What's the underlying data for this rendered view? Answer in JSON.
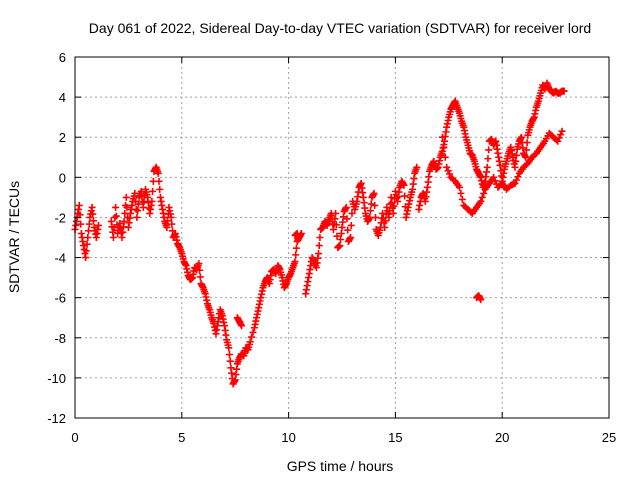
{
  "chart_data": {
    "type": "scatter",
    "title": "Day 061 of 2022, Sidereal Day-to-day VTEC variation (SDTVAR) for receiver lord",
    "xlabel": "GPS time / hours",
    "ylabel": "SDTVAR / TECUs",
    "xlim": [
      0,
      25
    ],
    "ylim": [
      -12,
      6
    ],
    "xticks": [
      0,
      5,
      10,
      15,
      20,
      25
    ],
    "yticks": [
      -12,
      -10,
      -8,
      -6,
      -4,
      -2,
      0,
      2,
      4,
      6
    ],
    "xtick_labels": [
      "0",
      "5",
      "10",
      "15",
      "20",
      "25"
    ],
    "ytick_labels": [
      "-12",
      "-10",
      "-8",
      "-6",
      "-4",
      "-2",
      "0",
      "2",
      "4",
      "6"
    ],
    "grid": true,
    "marker": "+",
    "color": "#ff0000",
    "series": [
      {
        "name": "SDTVAR",
        "x": [
          0.0,
          0.1,
          0.2,
          0.3,
          0.4,
          0.5,
          0.6,
          0.7,
          0.8,
          0.9,
          1.0,
          1.1,
          1.7,
          1.8,
          1.9,
          2.0,
          2.1,
          2.2,
          2.3,
          2.4,
          2.5,
          2.6,
          2.7,
          2.8,
          2.9,
          3.0,
          3.1,
          3.2,
          3.3,
          3.4,
          3.5,
          3.6,
          3.7,
          3.8,
          3.9,
          4.0,
          4.1,
          4.2,
          4.3,
          4.4,
          4.5,
          4.6,
          4.7,
          4.8,
          4.9,
          5.0,
          5.1,
          5.2,
          5.3,
          5.4,
          5.5,
          5.6,
          5.7,
          5.8,
          5.9,
          6.0,
          6.1,
          6.2,
          6.3,
          6.4,
          6.5,
          6.6,
          6.7,
          6.8,
          6.9,
          7.0,
          7.1,
          7.2,
          7.3,
          7.4,
          7.5,
          7.6,
          7.7,
          7.8,
          7.9,
          8.0,
          8.1,
          8.2,
          8.4,
          8.5,
          8.6,
          8.7,
          8.8,
          8.9,
          9.0,
          9.1,
          9.2,
          9.3,
          9.4,
          9.5,
          9.6,
          9.7,
          9.8,
          9.9,
          10.0,
          10.1,
          10.2,
          10.3,
          10.4,
          10.5,
          10.6,
          10.8,
          10.9,
          11.0,
          11.1,
          11.2,
          11.3,
          11.4,
          11.5,
          11.6,
          11.7,
          11.8,
          11.9,
          12.0,
          12.1,
          12.2,
          12.3,
          12.4,
          12.5,
          12.6,
          12.7,
          12.8,
          12.9,
          13.0,
          13.1,
          13.2,
          13.3,
          13.4,
          13.5,
          13.6,
          13.7,
          13.8,
          13.9,
          14.0,
          14.1,
          14.2,
          14.3,
          14.4,
          14.5,
          14.6,
          14.7,
          14.8,
          14.9,
          15.0,
          15.1,
          15.2,
          15.3,
          15.4,
          15.5,
          15.6,
          15.7,
          15.8,
          15.9,
          16.0,
          16.1,
          16.2,
          16.3,
          16.4,
          16.5,
          16.6,
          16.7,
          16.8,
          16.9,
          17.0,
          17.1,
          17.2,
          17.3,
          17.4,
          17.5,
          17.6,
          17.7,
          17.8,
          17.9,
          18.0,
          18.1,
          18.2,
          18.3,
          18.4,
          18.5,
          18.6,
          18.7,
          18.8,
          18.9,
          19.0,
          19.1,
          19.2,
          19.3,
          19.4,
          19.5,
          19.6,
          19.7,
          19.8,
          19.9,
          20.0,
          20.1,
          20.2,
          20.3,
          20.4,
          20.5,
          20.6,
          20.7,
          20.8,
          20.9,
          21.0,
          21.1,
          21.2,
          21.3,
          21.4,
          21.5,
          21.6,
          21.7,
          21.8,
          21.9,
          22.0,
          22.1,
          22.2,
          22.3,
          22.4,
          22.5,
          22.6,
          22.7,
          22.8,
          22.9,
          17.2,
          17.4,
          17.6,
          17.8,
          18.0,
          18.2,
          18.4,
          18.6,
          18.8,
          19.0,
          19.2,
          19.4,
          19.6,
          19.8,
          20.0,
          20.2,
          20.4,
          20.6,
          20.8,
          21.0,
          21.2,
          21.4,
          21.6,
          21.8,
          22.0,
          22.2,
          22.4,
          22.6,
          22.8,
          18.8,
          18.9,
          19.0,
          10.3,
          10.4,
          7.6,
          7.7,
          7.8
        ],
        "y": [
          -2.6,
          -2.0,
          -1.4,
          -2.8,
          -3.4,
          -4.0,
          -3.0,
          -2.0,
          -1.5,
          -2.5,
          -3.0,
          -2.4,
          -2.2,
          -3.0,
          -1.5,
          -2.8,
          -2.3,
          -3.0,
          -2.2,
          -1.0,
          -2.5,
          -1.8,
          -1.2,
          -0.8,
          -2.0,
          -1.0,
          -0.7,
          -1.5,
          -0.6,
          -1.0,
          -1.8,
          -1.2,
          0.3,
          0.5,
          0.2,
          -1.0,
          -1.6,
          -2.2,
          -2.5,
          -1.5,
          -2.0,
          -3.0,
          -2.8,
          -3.3,
          -3.5,
          -3.8,
          -4.2,
          -4.4,
          -4.9,
          -5.1,
          -5.0,
          -4.5,
          -4.6,
          -4.3,
          -5.3,
          -5.5,
          -5.8,
          -6.3,
          -6.6,
          -7.0,
          -7.3,
          -7.8,
          -7.2,
          -6.6,
          -6.9,
          -7.4,
          -8.1,
          -8.5,
          -9.5,
          -10.3,
          -10.1,
          -9.3,
          -9.0,
          -8.8,
          -8.9,
          -8.5,
          -8.6,
          -8.2,
          -7.5,
          -7.0,
          -6.5,
          -6.0,
          -5.5,
          -5.2,
          -5.0,
          -5.3,
          -4.7,
          -4.6,
          -4.8,
          -4.4,
          -4.6,
          -5.0,
          -5.5,
          -5.3,
          -5.0,
          -4.8,
          -4.5,
          -4.2,
          -3.2,
          -3.0,
          -2.8,
          -5.8,
          -5.2,
          -4.6,
          -4.0,
          -4.2,
          -4.5,
          -3.8,
          -2.6,
          -2.5,
          -2.2,
          -2.4,
          -2.1,
          -1.8,
          -2.6,
          -1.8,
          -3.5,
          -3.4,
          -2.5,
          -1.7,
          -1.5,
          -3.2,
          -3.0,
          -1.2,
          -1.6,
          -1.2,
          -0.5,
          -0.3,
          -1.0,
          -1.8,
          -2.2,
          -2.0,
          -1.0,
          -0.8,
          -2.6,
          -2.9,
          -2.5,
          -1.8,
          -2.5,
          -1.5,
          -2.0,
          -1.0,
          -1.8,
          -0.7,
          -1.2,
          -0.5,
          -0.2,
          -0.4,
          -2.0,
          -1.5,
          -1.0,
          -0.6,
          0.2,
          0.5,
          -1.6,
          -1.0,
          -0.8,
          -1.2,
          -0.5,
          0.3,
          0.6,
          0.8,
          0.4,
          0.5,
          1.0,
          1.3,
          1.8,
          2.5,
          3.0,
          3.4,
          3.6,
          3.8,
          3.5,
          3.2,
          2.8,
          2.5,
          2.0,
          1.6,
          1.2,
          1.1,
          0.8,
          0.4,
          0.2,
          0.0,
          -0.5,
          -0.2,
          0.5,
          1.8,
          1.9,
          1.6,
          1.8,
          1.2,
          0.6,
          -0.2,
          0.4,
          0.8,
          1.2,
          1.5,
          1.0,
          0.5,
          1.4,
          1.8,
          2.0,
          1.2,
          1.0,
          2.1,
          2.5,
          2.8,
          3.0,
          3.5,
          3.8,
          4.2,
          4.6,
          4.4,
          4.7,
          4.4,
          4.3,
          4.2,
          4.3,
          4.2,
          4.2,
          4.3,
          4.3,
          2.0,
          0.5,
          0.0,
          -0.2,
          -0.5,
          -1.4,
          -1.6,
          -1.8,
          -1.5,
          -1.2,
          -0.6,
          -0.3,
          0.0,
          -0.5,
          -0.3,
          -0.6,
          -0.4,
          -0.3,
          0.2,
          0.5,
          0.7,
          1.0,
          1.2,
          1.5,
          1.8,
          2.2,
          2.0,
          1.8,
          2.3,
          -6.0,
          -5.9,
          -6.1,
          -2.9,
          -2.8,
          -7.0,
          -7.2,
          -7.4
        ]
      }
    ]
  }
}
